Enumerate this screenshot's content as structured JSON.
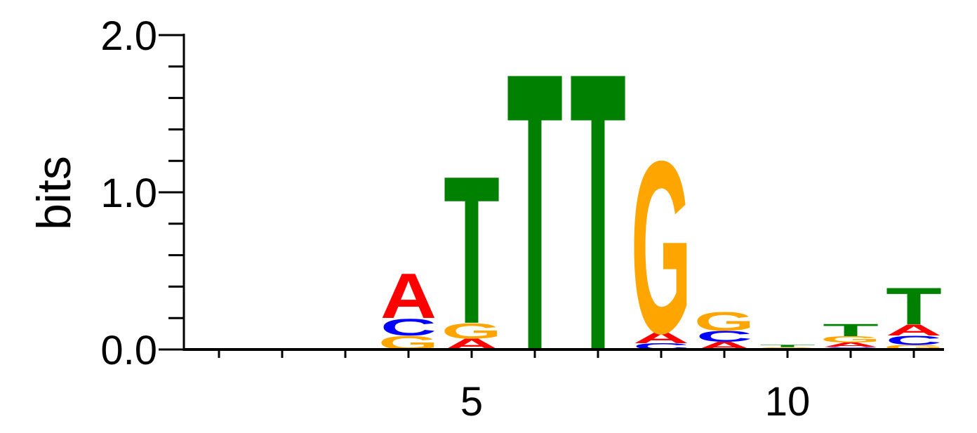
{
  "chart_data": {
    "type": "sequence-logo",
    "title": "",
    "xlabel": "",
    "ylabel": "bits",
    "ylim": [
      0,
      2
    ],
    "y_ticks": [
      "0.0",
      "1.0",
      "2.0"
    ],
    "x_ticks": [
      "5",
      "10"
    ],
    "x_tick_positions": [
      5,
      10
    ],
    "positions": [
      1,
      2,
      3,
      4,
      5,
      6,
      7,
      8,
      9,
      10,
      11,
      12
    ],
    "colors": {
      "A": "#ff0000",
      "C": "#0000ff",
      "G": "#ffa500",
      "T": "#008000"
    },
    "stacks": [
      [
        {
          "base": "T",
          "height": 0.006
        }
      ],
      [],
      [],
      [
        {
          "base": "G",
          "height": 0.09
        },
        {
          "base": "C",
          "height": 0.11
        },
        {
          "base": "A",
          "height": 0.29
        }
      ],
      [
        {
          "base": "A",
          "height": 0.07
        },
        {
          "base": "G",
          "height": 0.1
        },
        {
          "base": "T",
          "height": 0.96
        }
      ],
      [
        {
          "base": "T",
          "height": 1.81
        }
      ],
      [
        {
          "base": "T",
          "height": 1.81
        }
      ],
      [
        {
          "base": "C",
          "height": 0.04
        },
        {
          "base": "A",
          "height": 0.07
        },
        {
          "base": "G",
          "height": 1.12
        }
      ],
      [
        {
          "base": "A",
          "height": 0.05
        },
        {
          "base": "C",
          "height": 0.07
        },
        {
          "base": "G",
          "height": 0.12
        }
      ],
      [
        {
          "base": "G",
          "height": 0.015
        },
        {
          "base": "T",
          "height": 0.015
        }
      ],
      [
        {
          "base": "C",
          "height": 0.015
        },
        {
          "base": "A",
          "height": 0.03
        },
        {
          "base": "G",
          "height": 0.04
        },
        {
          "base": "T",
          "height": 0.08
        }
      ],
      [
        {
          "base": "G",
          "height": 0.03
        },
        {
          "base": "C",
          "height": 0.06
        },
        {
          "base": "A",
          "height": 0.07
        },
        {
          "base": "T",
          "height": 0.24
        }
      ]
    ]
  }
}
